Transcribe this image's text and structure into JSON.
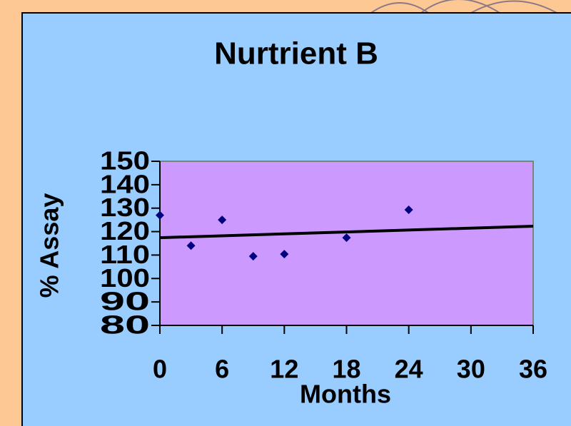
{
  "chart_data": {
    "type": "scatter",
    "title": "Nurtrient B",
    "x_label": "Months",
    "y_label": "% Assay",
    "x": [
      0,
      3,
      6,
      9,
      12,
      18,
      24
    ],
    "values": [
      127,
      114,
      125,
      109.5,
      110.4,
      117.4,
      129.3
    ],
    "color": "#000080",
    "trendline": {
      "x": [
        0,
        36
      ],
      "values": [
        117.4,
        122.3
      ],
      "color": "#000000"
    },
    "xlim": [
      0,
      36
    ],
    "xticks": [
      0,
      6,
      12,
      18,
      24,
      30,
      36
    ],
    "ylim": [
      80,
      150
    ],
    "yticks": [
      80,
      90,
      100,
      110,
      120,
      130,
      140,
      150
    ],
    "plot_background": "#cc99ff"
  }
}
